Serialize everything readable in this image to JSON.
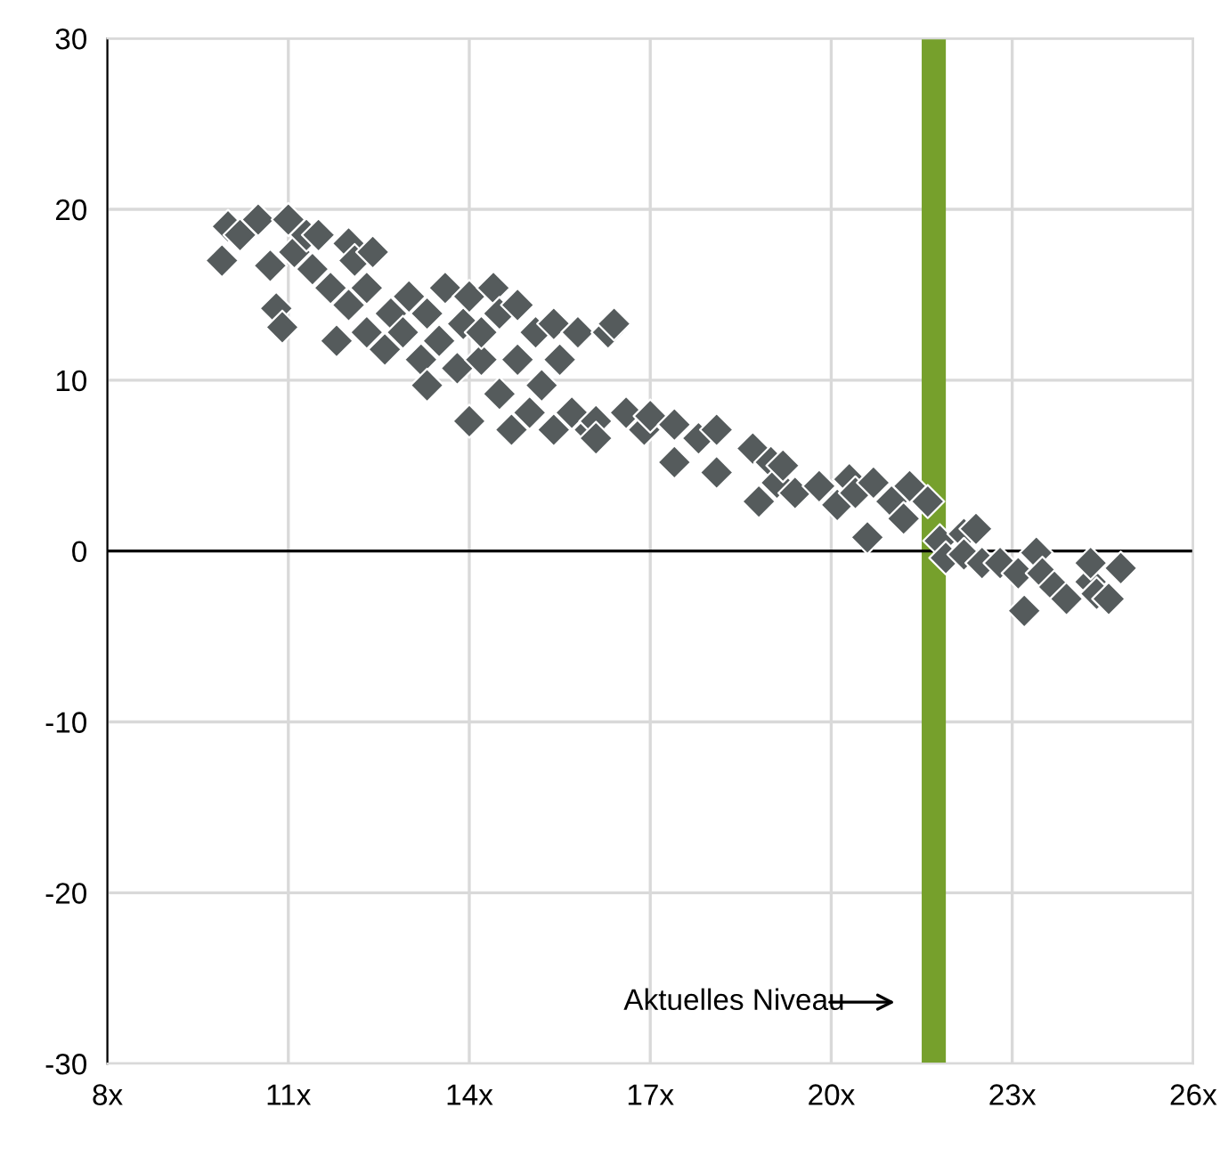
{
  "chart_data": {
    "type": "scatter",
    "marker": "diamond",
    "grid": true,
    "legend": false,
    "xlim": [
      8,
      26
    ],
    "ylim": [
      -30,
      30
    ],
    "xticks": [
      {
        "value": 8,
        "label": "8x"
      },
      {
        "value": 11,
        "label": "11x"
      },
      {
        "value": 14,
        "label": "14x"
      },
      {
        "value": 17,
        "label": "17x"
      },
      {
        "value": 20,
        "label": "20x"
      },
      {
        "value": 23,
        "label": "23x"
      },
      {
        "value": 26,
        "label": "26x"
      }
    ],
    "yticks": [
      -30,
      -20,
      -10,
      0,
      10,
      20,
      30
    ],
    "ref_lines": [
      {
        "axis": "y",
        "value": 0,
        "color": "#000000"
      }
    ],
    "bands": [
      {
        "axis": "x",
        "from": 21.5,
        "to": 21.9,
        "color": "#76a02c"
      }
    ],
    "annotations": [
      "Aktuelles Niveau"
    ],
    "series": [
      {
        "color": "#555b5c",
        "x": [
          9.9,
          10.0,
          10.2,
          10.5,
          10.7,
          10.8,
          10.9,
          11.0,
          11.1,
          11.3,
          11.4,
          11.5,
          11.7,
          11.8,
          12.0,
          12.0,
          12.1,
          12.3,
          12.3,
          12.4,
          12.6,
          12.7,
          12.9,
          13.0,
          13.2,
          13.3,
          13.3,
          13.5,
          13.6,
          13.8,
          13.9,
          14.0,
          14.0,
          14.2,
          14.2,
          14.4,
          14.5,
          14.5,
          14.7,
          14.8,
          14.8,
          15.0,
          15.1,
          15.2,
          15.4,
          15.4,
          15.5,
          15.7,
          15.8,
          16.0,
          16.1,
          16.3,
          16.4,
          16.1,
          16.6,
          16.9,
          17.0,
          17.4,
          17.4,
          17.8,
          18.1,
          18.1,
          18.7,
          18.8,
          19.0,
          19.1,
          19.2,
          19.4,
          19.8,
          20.1,
          20.3,
          20.4,
          20.6,
          20.7,
          21.0,
          21.2,
          21.3,
          21.6,
          21.8,
          21.9,
          22.2,
          22.4,
          22.2,
          22.5,
          22.8,
          23.1,
          23.2,
          23.4,
          23.5,
          23.7,
          23.9,
          24.3,
          24.3,
          24.4,
          24.6,
          24.8
        ],
        "values": [
          17,
          19,
          18.5,
          19.4,
          16.7,
          14.2,
          13.1,
          19.4,
          17.5,
          18.5,
          16.5,
          18.5,
          15.4,
          12.3,
          18,
          14.4,
          17,
          12.8,
          15.4,
          17.5,
          11.8,
          13.9,
          12.8,
          14.9,
          11.2,
          9.7,
          13.9,
          12.3,
          15.4,
          10.7,
          13.3,
          14.9,
          7.6,
          11.2,
          12.8,
          15.4,
          9.2,
          13.9,
          7.1,
          11.2,
          14.4,
          8.1,
          12.8,
          9.7,
          7.1,
          13.3,
          11.2,
          8.1,
          12.8,
          7.1,
          7.6,
          12.8,
          13.3,
          6.6,
          8.1,
          7.1,
          7.9,
          7.4,
          5.2,
          6.6,
          7.1,
          4.6,
          6.0,
          2.9,
          5.2,
          4.0,
          5.0,
          3.4,
          3.8,
          2.7,
          4.2,
          3.4,
          0.8,
          4.0,
          2.9,
          1.9,
          3.8,
          2.9,
          0.6,
          -0.4,
          1.0,
          1.3,
          -0.2,
          -0.7,
          -0.7,
          -1.3,
          -3.5,
          -0.1,
          -1.3,
          -2.1,
          -2.8,
          -1.8,
          -0.7,
          -2.5,
          -2.8,
          -1.0
        ]
      }
    ]
  }
}
